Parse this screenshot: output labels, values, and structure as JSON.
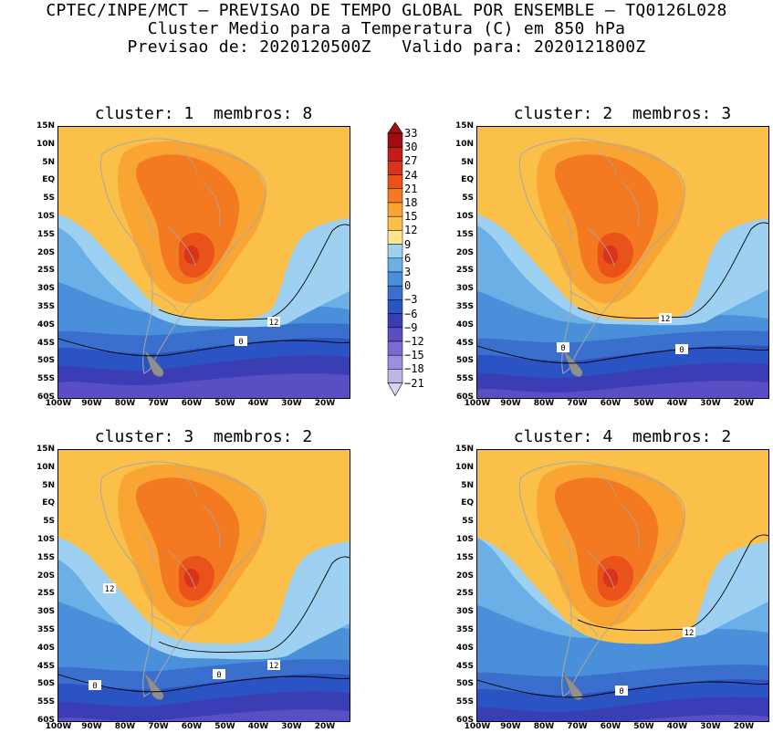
{
  "header": {
    "line1": "CPTEC/INPE/MCT – PREVISAO DE TEMPO GLOBAL POR ENSEMBLE – TQ0126L028",
    "line2": "Cluster Medio para a Temperatura (C) em 850 hPa",
    "line3": "Previsao de: 2020120500Z   Valido para: 2020121800Z"
  },
  "panels": [
    {
      "title": "cluster: 1  membros: 8",
      "contour_labels": [
        "12",
        "0"
      ]
    },
    {
      "title": "cluster: 2  membros: 3",
      "contour_labels": [
        "12",
        "0",
        "0"
      ]
    },
    {
      "title": "cluster: 3  membros: 2",
      "contour_labels": [
        "12",
        "12",
        "0",
        "0"
      ]
    },
    {
      "title": "cluster: 4  membros: 2",
      "contour_labels": [
        "12",
        "0"
      ]
    }
  ],
  "axes": {
    "lat_labels": [
      "15N",
      "10N",
      "5N",
      "EQ",
      "5S",
      "10S",
      "15S",
      "20S",
      "25S",
      "30S",
      "35S",
      "40S",
      "45S",
      "50S",
      "55S",
      "60S"
    ],
    "lon_labels": [
      "100W",
      "90W",
      "80W",
      "70W",
      "60W",
      "50W",
      "40W",
      "30W",
      "20W"
    ]
  },
  "colorbar": {
    "labels": [
      "33",
      "30",
      "27",
      "24",
      "21",
      "18",
      "15",
      "12",
      "9",
      "6",
      "3",
      "0",
      "−3",
      "−6",
      "−9",
      "−12",
      "−15",
      "−18",
      "−21"
    ],
    "colors": [
      "#9e0d14",
      "#c01c1c",
      "#d9341b",
      "#e9531a",
      "#f37a20",
      "#f8a533",
      "#fbc04a",
      "#fee48c",
      "#9ed0f2",
      "#6aafe6",
      "#4a8fd9",
      "#3a6fcd",
      "#2a54c4",
      "#3a3db4",
      "#5a4ec4",
      "#7a6ad2",
      "#9c8ede",
      "#c0b4e8",
      "#dcd2f2"
    ]
  }
}
